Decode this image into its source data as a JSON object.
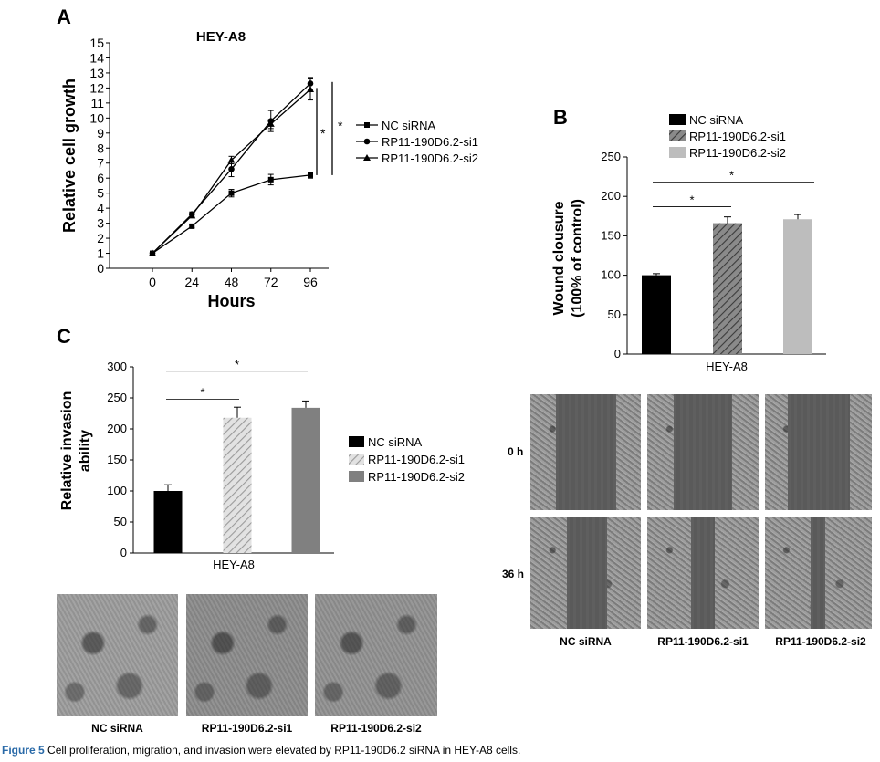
{
  "panels": {
    "a": {
      "letter": "A"
    },
    "b": {
      "letter": "B"
    },
    "c": {
      "letter": "C"
    }
  },
  "chart_data": [
    {
      "type": "line",
      "panel": "A",
      "title": "HEY-A8",
      "xlabel": "Hours",
      "ylabel": "Relative cell growth",
      "x": [
        0,
        24,
        48,
        72,
        96
      ],
      "xlim": [
        0,
        96
      ],
      "ylim": [
        0,
        15
      ],
      "yticks": [
        0,
        1,
        2,
        3,
        4,
        5,
        6,
        7,
        8,
        9,
        10,
        11,
        12,
        13,
        14,
        15
      ],
      "series": [
        {
          "name": "NC siRNA",
          "marker": "square",
          "values": [
            1.0,
            2.8,
            5.0,
            5.9,
            6.2
          ],
          "errors": [
            0.05,
            0.1,
            0.25,
            0.35,
            0.2
          ]
        },
        {
          "name": "RP11-190D6.2-si1",
          "marker": "circle",
          "values": [
            1.0,
            3.6,
            6.6,
            9.8,
            12.3
          ],
          "errors": [
            0.05,
            0.15,
            0.5,
            0.7,
            0.4
          ]
        },
        {
          "name": "RP11-190D6.2-si2",
          "marker": "triangle",
          "values": [
            1.0,
            3.5,
            7.2,
            9.6,
            11.9
          ],
          "errors": [
            0.05,
            0.1,
            0.25,
            0.3,
            0.7
          ]
        }
      ],
      "significance": [
        "*",
        "*"
      ],
      "legend": "right"
    },
    {
      "type": "bar",
      "panel": "B",
      "ylabel": "Wound clousure (100% of control)",
      "xlabel": "HEY-A8",
      "ylim": [
        0,
        250
      ],
      "yticks": [
        0,
        50,
        100,
        150,
        200,
        250
      ],
      "series": [
        {
          "name": "NC siRNA",
          "value": 100,
          "error": 2,
          "color": "#000000",
          "pattern": "solid"
        },
        {
          "name": "RP11-190D6.2-si1",
          "value": 166,
          "error": 8,
          "color": "#666666",
          "pattern": "hatch"
        },
        {
          "name": "RP11-190D6.2-si2",
          "value": 171,
          "error": 6,
          "color": "#bdbdbd",
          "pattern": "solid"
        }
      ],
      "significance": [
        "*",
        "*"
      ],
      "legend": "top"
    },
    {
      "type": "bar",
      "panel": "C",
      "ylabel": "Relative invasion ability",
      "xlabel": "HEY-A8",
      "ylim": [
        0,
        300
      ],
      "yticks": [
        0,
        50,
        100,
        150,
        200,
        250,
        300
      ],
      "series": [
        {
          "name": "NC siRNA",
          "value": 100,
          "error": 10,
          "color": "#000000",
          "pattern": "solid"
        },
        {
          "name": "RP11-190D6.2-si1",
          "value": 218,
          "error": 17,
          "color": "#cfcfcf",
          "pattern": "hatch"
        },
        {
          "name": "RP11-190D6.2-si2",
          "value": 234,
          "error": 11,
          "color": "#808080",
          "pattern": "solid"
        }
      ],
      "significance": [
        "*",
        "*"
      ],
      "legend": "right"
    }
  ],
  "wound_images": {
    "row_labels": [
      "0 h",
      "36 h"
    ],
    "col_labels": [
      "NC siRNA",
      "RP11-190D6.2-si1",
      "RP11-190D6.2-si2"
    ]
  },
  "invasion_images": {
    "col_labels": [
      "NC siRNA",
      "RP11-190D6.2-si1",
      "RP11-190D6.2-si2"
    ]
  },
  "caption": {
    "label": "Figure 5",
    "text": "Cell proliferation, migration, and invasion were elevated by RP11-190D6.2 siRNA in HEY-A8 cells."
  }
}
